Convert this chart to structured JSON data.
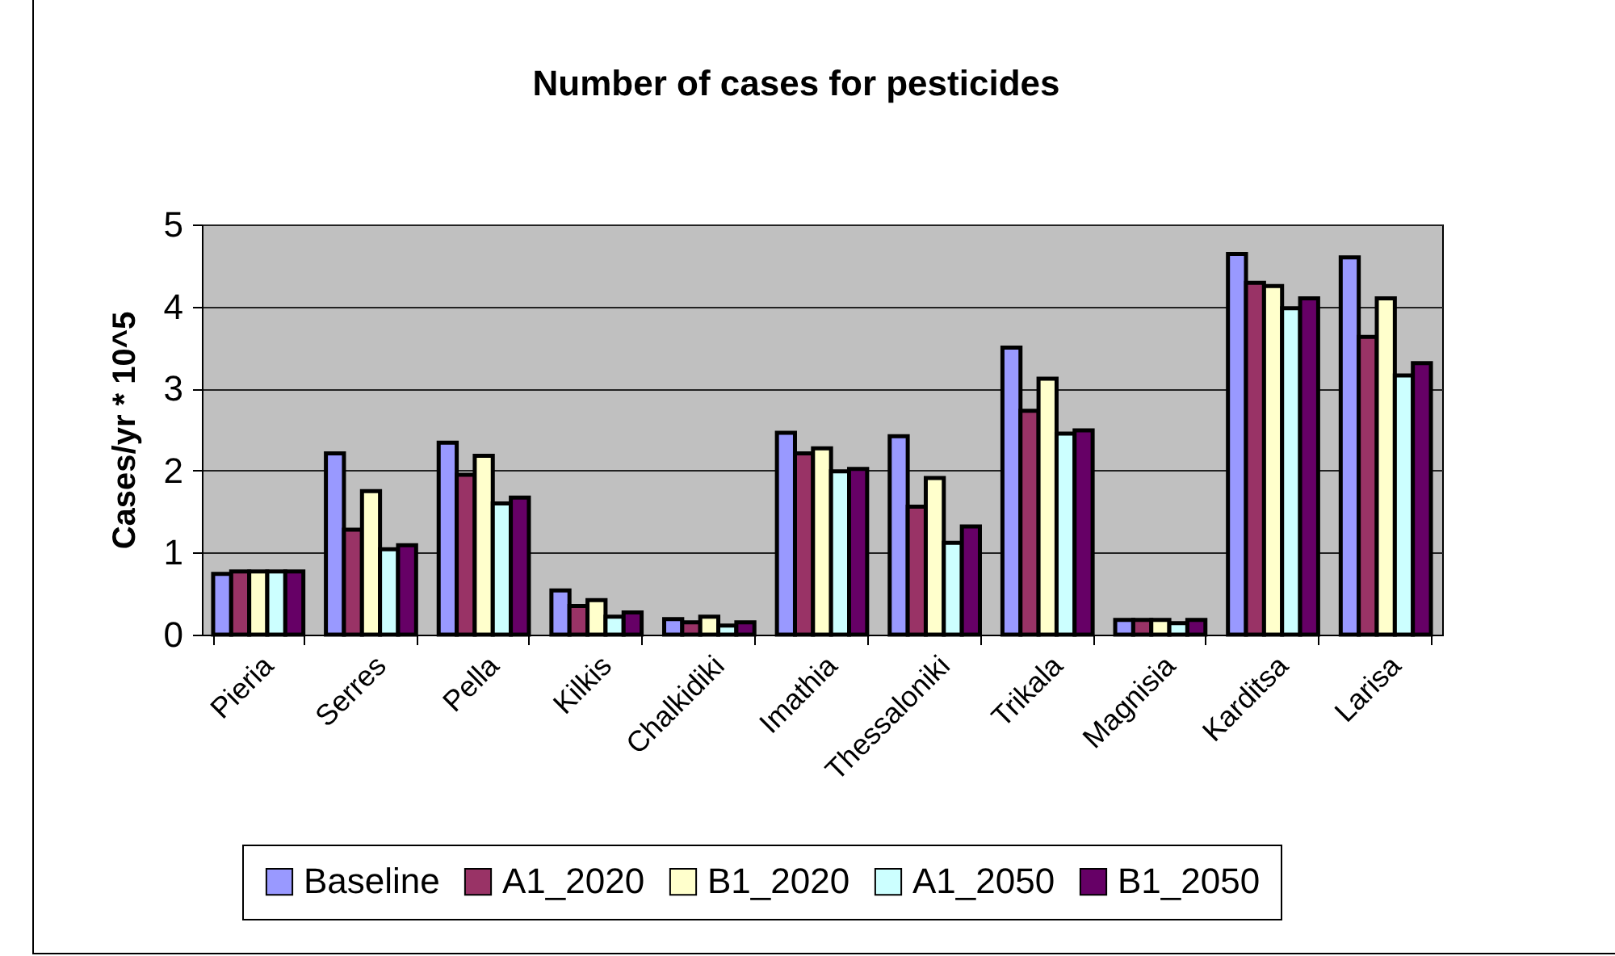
{
  "chart_data": {
    "type": "bar",
    "title": "Number of cases for pesticides",
    "ylabel": "Cases/yr * 10^5",
    "categories": [
      "Pieria",
      "Serres",
      "Pella",
      "Kilkis",
      "Chalkidiki",
      "Imathia",
      "Thessaloniki",
      "Trikala",
      "Magnisia",
      "Karditsa",
      "Larisa"
    ],
    "series": [
      {
        "name": "Baseline",
        "color": "#9999ff",
        "values": [
          0.74,
          2.21,
          2.34,
          0.54,
          0.19,
          2.46,
          2.42,
          3.5,
          0.18,
          4.64,
          4.6
        ]
      },
      {
        "name": "A1_2020",
        "color": "#993366",
        "values": [
          0.77,
          1.28,
          1.95,
          0.35,
          0.15,
          2.21,
          1.56,
          2.73,
          0.18,
          4.29,
          3.63
        ]
      },
      {
        "name": "B1_2020",
        "color": "#ffffcc",
        "values": [
          0.77,
          1.75,
          2.18,
          0.42,
          0.22,
          2.27,
          1.91,
          3.12,
          0.18,
          4.25,
          4.1
        ]
      },
      {
        "name": "A1_2050",
        "color": "#ccffff",
        "values": [
          0.77,
          1.04,
          1.6,
          0.22,
          0.11,
          1.99,
          1.12,
          2.45,
          0.14,
          3.98,
          3.16
        ]
      },
      {
        "name": "B1_2050",
        "color": "#660066",
        "values": [
          0.77,
          1.09,
          1.67,
          0.27,
          0.15,
          2.02,
          1.32,
          2.49,
          0.18,
          4.1,
          3.31
        ]
      }
    ],
    "ylim": [
      0,
      5
    ],
    "yticks": [
      0,
      1,
      2,
      3,
      4,
      5
    ],
    "grid": "y",
    "legend": "bottom"
  }
}
